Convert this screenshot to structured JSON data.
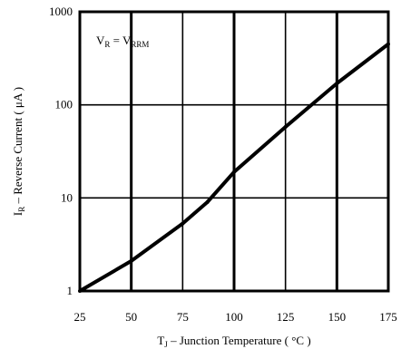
{
  "chart_data": {
    "type": "line",
    "xlabel_main": "T",
    "xlabel_sub": "J",
    "xlabel_rest": " – Junction Temperature ( °C )",
    "ylabel_main": "I",
    "ylabel_sub": "R",
    "ylabel_rest": " – Reverse Current ( μA )",
    "annotation": {
      "a_main": "V",
      "a_sub": "R",
      "eq": " = V",
      "b_sub": "RRM"
    },
    "xlim": [
      25,
      175
    ],
    "ylim": [
      1,
      1000
    ],
    "yscale": "log",
    "grid": true,
    "x_ticks": [
      "25",
      "50",
      "75",
      "100",
      "125",
      "150",
      "175"
    ],
    "y_ticks": [
      "1",
      "10",
      "100",
      "1000"
    ],
    "x_tick_values": [
      25,
      50,
      75,
      100,
      125,
      150,
      175
    ],
    "y_tick_values": [
      1,
      10,
      100,
      1000
    ],
    "series": [
      {
        "x": [
          25,
          50,
          75,
          87,
          100,
          125,
          150,
          175
        ],
        "y": [
          1.0,
          2.1,
          5.3,
          9.0,
          19,
          58,
          170,
          450
        ]
      }
    ]
  }
}
